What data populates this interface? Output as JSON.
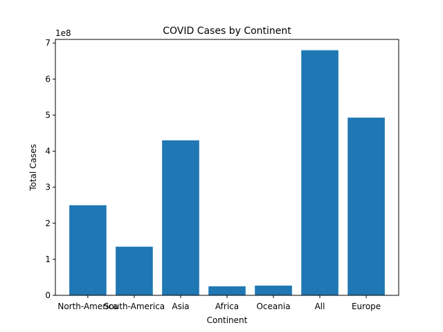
{
  "chart_data": {
    "type": "bar",
    "title": "COVID Cases by Continent",
    "xlabel": "Continent",
    "ylabel": "Total Cases",
    "y_scale_label": "1e8",
    "categories": [
      "North-America",
      "South-America",
      "Asia",
      "Africa",
      "Oceania",
      "All",
      "Europe"
    ],
    "values": [
      250000000,
      135000000,
      430000000,
      25000000,
      27000000,
      680000000,
      493000000
    ],
    "ylim": [
      0,
      710000000
    ],
    "yticks": [
      0,
      100000000,
      200000000,
      300000000,
      400000000,
      500000000,
      600000000,
      700000000
    ],
    "ytick_labels": [
      "0",
      "1",
      "2",
      "3",
      "4",
      "5",
      "6",
      "7"
    ],
    "bar_color": "#1f77b4",
    "grid": false,
    "legend": false
  }
}
